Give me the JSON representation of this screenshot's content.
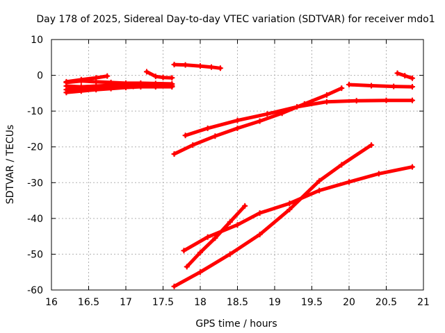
{
  "chart_data": {
    "type": "line",
    "title": "Day 178 of 2025, Sidereal Day-to-day VTEC variation (SDTVAR) for receiver mdo1",
    "xlabel": "GPS time / hours",
    "ylabel": "SDTVAR / TECUs",
    "xlim": [
      16,
      21
    ],
    "ylim": [
      -60,
      10
    ],
    "xticks": [
      16,
      16.5,
      17,
      17.5,
      18,
      18.5,
      19,
      19.5,
      20,
      20.5,
      21
    ],
    "yticks": [
      -60,
      -50,
      -40,
      -30,
      -20,
      -10,
      0,
      10
    ],
    "grid": true,
    "series_color": "#ff0000",
    "series": [
      {
        "name": "s1",
        "x": [
          16.2,
          16.4,
          16.6,
          16.8,
          17.0,
          17.2,
          17.4,
          17.62
        ],
        "y": [
          -2.0,
          -1.6,
          -1.8,
          -2.0,
          -2.2,
          -2.2,
          -2.3,
          -2.4
        ]
      },
      {
        "name": "s2",
        "x": [
          16.2,
          16.4,
          16.6,
          16.8,
          17.0,
          17.2,
          17.4,
          17.62
        ],
        "y": [
          -3.0,
          -3.2,
          -3.0,
          -2.8,
          -2.8,
          -2.9,
          -3.0,
          -3.1
        ]
      },
      {
        "name": "s3",
        "x": [
          16.2,
          16.4,
          16.6,
          16.8,
          17.0,
          17.2,
          17.4,
          17.62
        ],
        "y": [
          -4.8,
          -4.4,
          -4.0,
          -3.7,
          -3.4,
          -3.2,
          -3.2,
          -3.2
        ]
      },
      {
        "name": "s4",
        "x": [
          16.2,
          16.4,
          16.6,
          16.75
        ],
        "y": [
          -1.8,
          -1.2,
          -0.7,
          -0.2
        ]
      },
      {
        "name": "s5",
        "x": [
          16.2,
          16.5,
          16.8,
          17.1,
          17.4,
          17.62
        ],
        "y": [
          -4.0,
          -3.6,
          -3.3,
          -3.1,
          -3.0,
          -2.9
        ]
      },
      {
        "name": "s6",
        "x": [
          17.28,
          17.4,
          17.5,
          17.62
        ],
        "y": [
          1.0,
          -0.3,
          -0.6,
          -0.7
        ]
      },
      {
        "name": "s7",
        "x": [
          17.65,
          17.8,
          18.0,
          18.15,
          18.27
        ],
        "y": [
          3.0,
          2.9,
          2.6,
          2.3,
          2.0
        ]
      },
      {
        "name": "s8",
        "x": [
          17.65,
          17.9,
          18.2,
          18.5,
          18.8,
          19.1,
          19.4,
          19.7,
          19.9
        ],
        "y": [
          -22.0,
          -19.5,
          -17.0,
          -14.8,
          -12.8,
          -10.6,
          -8.0,
          -5.5,
          -3.6
        ]
      },
      {
        "name": "s9",
        "x": [
          17.8,
          18.1,
          18.5,
          18.9,
          19.3,
          19.7,
          20.1,
          20.5,
          20.85
        ],
        "y": [
          -16.8,
          -14.8,
          -12.6,
          -10.8,
          -8.8,
          -7.4,
          -7.1,
          -7.0,
          -7.0
        ]
      },
      {
        "name": "s10",
        "x": [
          20.0,
          20.3,
          20.6,
          20.85
        ],
        "y": [
          -2.6,
          -2.9,
          -3.1,
          -3.2
        ]
      },
      {
        "name": "s11",
        "x": [
          20.65,
          20.75,
          20.85
        ],
        "y": [
          0.6,
          -0.1,
          -0.8
        ]
      },
      {
        "name": "s12",
        "x": [
          17.65,
          18.0,
          18.4,
          18.8,
          19.2,
          19.6,
          19.9,
          20.3
        ],
        "y": [
          -59.0,
          -55.0,
          -50.0,
          -44.5,
          -37.5,
          -29.5,
          -25.0,
          -19.5
        ]
      },
      {
        "name": "s13",
        "x": [
          17.78,
          18.1,
          18.5,
          18.8,
          19.2,
          19.6,
          20.0,
          20.4,
          20.85
        ],
        "y": [
          -49.0,
          -45.2,
          -41.8,
          -38.5,
          -35.8,
          -32.2,
          -29.8,
          -27.5,
          -25.6
        ]
      },
      {
        "name": "s14",
        "x": [
          17.82,
          18.0,
          18.2,
          18.4,
          18.6
        ],
        "y": [
          -53.5,
          -49.5,
          -45.5,
          -41.0,
          -36.5
        ]
      }
    ]
  }
}
